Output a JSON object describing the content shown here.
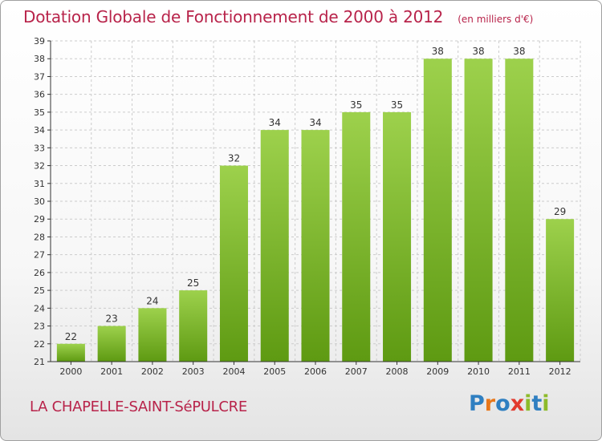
{
  "title": "Dotation Globale de Fonctionnement de 2000 à 2012",
  "unit_note": "(en milliers d'€)",
  "commune": "LA CHAPELLE-SAINT-SéPULCRE",
  "logo": {
    "text": "Proxiti",
    "letters": [
      {
        "ch": "P",
        "color": "#2f7fc1"
      },
      {
        "ch": "r",
        "color": "#e8771a"
      },
      {
        "ch": "o",
        "color": "#2f7fc1"
      },
      {
        "ch": "x",
        "color": "#e23a2e"
      },
      {
        "ch": "i",
        "color": "#8dbb2a"
      },
      {
        "ch": "t",
        "color": "#2f7fc1"
      },
      {
        "ch": "i",
        "color": "#8dbb2a"
      }
    ]
  },
  "colors": {
    "title": "#b8234a",
    "bar_top": "#9dd14c",
    "bar_bottom": "#5e9a12",
    "axis": "#333333",
    "grid": "#cccccc"
  },
  "chart_data": {
    "type": "bar",
    "categories": [
      "2000",
      "2001",
      "2002",
      "2003",
      "2004",
      "2005",
      "2006",
      "2007",
      "2008",
      "2009",
      "2010",
      "2011",
      "2012"
    ],
    "values": [
      22,
      23,
      24,
      25,
      32,
      34,
      34,
      35,
      35,
      38,
      38,
      38,
      29
    ],
    "ylim": [
      21,
      39
    ],
    "yticks": [
      21,
      22,
      23,
      24,
      25,
      26,
      27,
      28,
      29,
      30,
      31,
      32,
      33,
      34,
      35,
      36,
      37,
      38,
      39
    ],
    "title": "Dotation Globale de Fonctionnement de 2000 à 2012",
    "xlabel": "",
    "ylabel": "",
    "grid": true,
    "data_labels": true
  }
}
